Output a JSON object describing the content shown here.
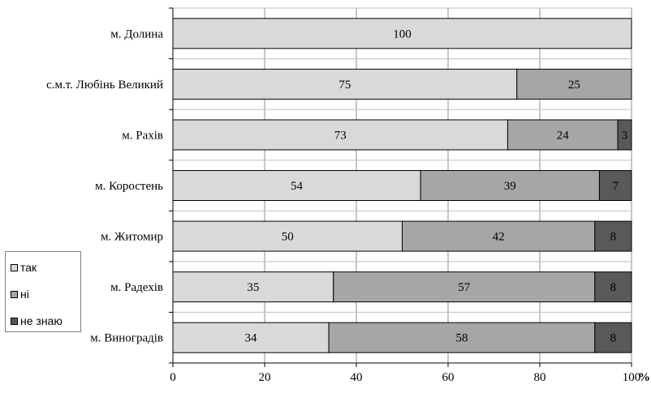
{
  "chart_data": {
    "type": "bar",
    "orientation": "horizontal",
    "stacked": true,
    "categories": [
      "м. Долина",
      "с.м.т. Любінь Великий",
      "м. Рахів",
      "м. Коростень",
      "м. Житомир",
      "м. Радехів",
      "м. Виноградів"
    ],
    "series": [
      {
        "name": "так",
        "color": "#d9d9d9",
        "values": [
          100,
          75,
          73,
          54,
          50,
          35,
          34
        ]
      },
      {
        "name": "ні",
        "color": "#a6a6a6",
        "values": [
          0,
          25,
          24,
          39,
          42,
          57,
          58
        ]
      },
      {
        "name": "не знаю",
        "color": "#595959",
        "values": [
          0,
          0,
          3,
          7,
          8,
          8,
          8
        ]
      }
    ],
    "xlim": [
      0,
      100
    ],
    "xticks": [
      "0",
      "20",
      "40",
      "60",
      "80",
      "100"
    ],
    "xlabel": "%",
    "ylabel": "",
    "title": "",
    "grid": true,
    "legend_position": "left"
  }
}
